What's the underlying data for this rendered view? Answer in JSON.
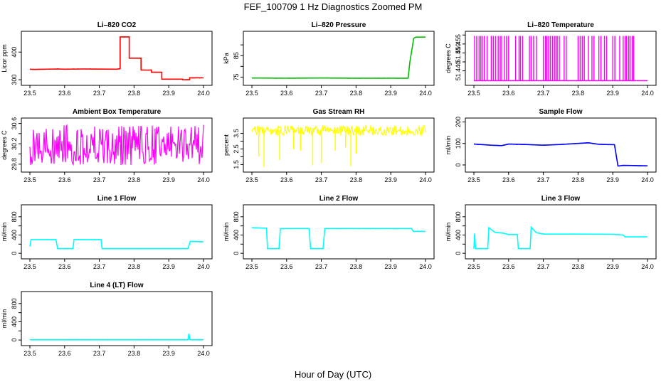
{
  "title": "FEF_100709  1 Hz Diagnostics Zoomed PM",
  "xlabel": "Hour of Day (UTC)",
  "chart_data": [
    {
      "type": "line",
      "title": "Li–820 CO2",
      "ylabel": "Licor ppm",
      "color": "#ff0000",
      "xlim": [
        23.5,
        24.0
      ],
      "ylim": [
        290,
        465
      ],
      "yticks": [
        300,
        400
      ],
      "ytick_labels": [
        "300",
        "400"
      ],
      "xticks": [
        23.5,
        23.6,
        23.7,
        23.8,
        23.9,
        24.0
      ],
      "xtick_labels": [
        "23.5",
        "23.6",
        "23.7",
        "23.8",
        "23.9",
        "24.0"
      ],
      "series": [
        {
          "name": "CO2",
          "x": [
            23.5,
            23.51,
            23.58,
            23.6,
            23.65,
            23.75,
            23.76,
            23.76,
            23.786,
            23.786,
            23.82,
            23.82,
            23.85,
            23.85,
            23.88,
            23.88,
            23.94,
            23.94,
            23.96,
            23.96,
            24.0
          ],
          "y": [
            338,
            337,
            339,
            338,
            339,
            338,
            340,
            455,
            455,
            378,
            378,
            335,
            335,
            327,
            327,
            302,
            302,
            300,
            300,
            307,
            307
          ]
        }
      ]
    },
    {
      "type": "line",
      "title": "Li–820 Pressure",
      "ylabel": "kPa",
      "color": "#00c000",
      "xlim": [
        23.5,
        24.0
      ],
      "ylim": [
        72.5,
        95
      ],
      "yticks": [
        75,
        80,
        85,
        90
      ],
      "ytick_labels": [
        "75",
        "",
        "85",
        ""
      ],
      "xticks": [
        23.5,
        23.6,
        23.7,
        23.8,
        23.9,
        24.0
      ],
      "xtick_labels": [
        "23.5",
        "23.6",
        "23.7",
        "23.8",
        "23.9",
        "24.0"
      ],
      "series": [
        {
          "name": "Pressure",
          "x": [
            23.5,
            23.6,
            23.7,
            23.8,
            23.9,
            23.95,
            23.955,
            23.962,
            23.966,
            23.972,
            24.0
          ],
          "y": [
            74.6,
            74.5,
            74.6,
            74.5,
            74.5,
            74.5,
            82,
            89,
            93,
            93.6,
            93.6
          ]
        }
      ]
    },
    {
      "type": "spikes",
      "title": "Li–820 Temperature",
      "ylabel": "degrees C",
      "color": "#ff00ff",
      "xlim": [
        23.5,
        24.0
      ],
      "ylim": [
        51.4335,
        51.4605
      ],
      "yticks": [
        51.44,
        51.445,
        51.45,
        51.455,
        51.46
      ],
      "ytick_labels": [
        "51.440",
        "",
        "51.450",
        "51.455",
        ""
      ],
      "xticks": [
        23.5,
        23.6,
        23.7,
        23.8,
        23.9,
        24.0
      ],
      "xtick_labels": [
        "23.5",
        "23.6",
        "23.7",
        "23.8",
        "23.9",
        "24.0"
      ],
      "baseline": 51.4345,
      "top": 51.4595,
      "spikes": [
        23.502,
        23.508,
        23.515,
        23.52,
        23.524,
        23.53,
        23.538,
        23.55,
        23.556,
        23.562,
        23.57,
        23.576,
        23.58,
        23.588,
        23.594,
        23.6,
        23.62,
        23.63,
        23.634,
        23.64,
        23.66,
        23.665,
        23.672,
        23.68,
        23.7,
        23.706,
        23.71,
        23.715,
        23.72,
        23.726,
        23.732,
        23.736,
        23.74,
        23.746,
        23.76,
        23.766,
        23.8,
        23.806,
        23.812,
        23.818,
        23.83,
        23.84,
        23.846,
        23.86,
        23.866,
        23.876,
        23.882,
        23.9,
        23.906,
        23.92,
        23.93,
        23.936,
        23.94,
        23.946,
        23.95,
        23.956,
        23.96
      ]
    },
    {
      "type": "noise",
      "title": "Ambient Box Temperature",
      "ylabel": "degrees C",
      "color": "#ff00ff",
      "xlim": [
        23.5,
        24.0
      ],
      "ylim": [
        29.7,
        30.65
      ],
      "yticks": [
        29.8,
        30.0,
        30.2,
        30.4,
        30.6
      ],
      "ytick_labels": [
        "29.8",
        "",
        "30.2",
        "",
        "30.6"
      ],
      "xticks": [
        23.5,
        23.6,
        23.7,
        23.8,
        23.9,
        24.0
      ],
      "xtick_labels": [
        "23.5",
        "23.6",
        "23.7",
        "23.8",
        "23.9",
        "24.0"
      ],
      "x0": 23.5,
      "x1": 24.0,
      "center_start": 30.08,
      "center_end": 30.22,
      "low": 29.78,
      "high": 30.58
    },
    {
      "type": "noise",
      "title": "Gas Stream RH",
      "ylabel": "percent",
      "color": "#ffff00",
      "xlim": [
        23.5,
        24.0
      ],
      "ylim": [
        1.2,
        4.3
      ],
      "yticks": [
        1.5,
        2.0,
        2.5,
        3.0,
        3.5
      ],
      "ytick_labels": [
        "1.5",
        "",
        "2.5",
        "",
        "3.5"
      ],
      "xticks": [
        23.5,
        23.6,
        23.7,
        23.8,
        23.9,
        24.0
      ],
      "xtick_labels": [
        "23.5",
        "23.6",
        "23.7",
        "23.8",
        "23.9",
        "24.0"
      ],
      "x0": 23.5,
      "x1": 24.0,
      "center_start": 3.7,
      "center_end": 3.65,
      "low": 3.35,
      "high": 4.0,
      "dips": [
        [
          23.52,
          2.0
        ],
        [
          23.535,
          1.35
        ],
        [
          23.58,
          1.8
        ],
        [
          23.62,
          2.5
        ],
        [
          23.64,
          2.4
        ],
        [
          23.675,
          1.45
        ],
        [
          23.7,
          1.6
        ],
        [
          23.74,
          2.4
        ],
        [
          23.77,
          2.6
        ],
        [
          23.785,
          1.4
        ],
        [
          23.8,
          2.2
        ]
      ]
    },
    {
      "type": "line",
      "title": "Sample Flow",
      "ylabel": "ml/min",
      "color": "#0000ff",
      "xlim": [
        23.5,
        24.0
      ],
      "ylim": [
        -20,
        205
      ],
      "yticks": [
        0,
        100,
        200
      ],
      "ytick_labels": [
        "0",
        "100",
        "200"
      ],
      "xticks": [
        23.5,
        23.6,
        23.7,
        23.8,
        23.9,
        24.0
      ],
      "xtick_labels": [
        "23.5",
        "23.6",
        "23.7",
        "23.8",
        "23.9",
        "24.0"
      ],
      "series": [
        {
          "name": "Sample Flow",
          "x": [
            23.5,
            23.55,
            23.58,
            23.6,
            23.65,
            23.7,
            23.75,
            23.8,
            23.83,
            23.86,
            23.905,
            23.915,
            23.93,
            24.0
          ],
          "y": [
            97,
            92,
            90,
            97,
            95,
            92,
            95,
            100,
            103,
            96,
            94,
            -5,
            -2,
            -4
          ]
        }
      ]
    },
    {
      "type": "line",
      "title": "Line 1 Flow",
      "ylabel": "ml/min",
      "color": "#00ffff",
      "xlim": [
        23.5,
        24.0
      ],
      "ylim": [
        -60,
        1000
      ],
      "yticks": [
        0,
        200,
        400,
        600,
        800
      ],
      "ytick_labels": [
        "0",
        "",
        "400",
        "",
        "800"
      ],
      "xticks": [
        23.5,
        23.6,
        23.7,
        23.8,
        23.9,
        24.0
      ],
      "xtick_labels": [
        "23.5",
        "23.6",
        "23.7",
        "23.8",
        "23.9",
        "24.0"
      ],
      "series": [
        {
          "name": "Line 1",
          "x": [
            23.5,
            23.503,
            23.575,
            23.58,
            23.624,
            23.627,
            23.705,
            23.708,
            23.955,
            23.962,
            24.0
          ],
          "y": [
            150,
            300,
            300,
            100,
            100,
            300,
            300,
            100,
            100,
            260,
            250
          ]
        }
      ]
    },
    {
      "type": "line",
      "title": "Line 2 Flow",
      "ylabel": "ml/min",
      "color": "#00ffff",
      "xlim": [
        23.5,
        24.0
      ],
      "ylim": [
        -60,
        1000
      ],
      "yticks": [
        0,
        200,
        400,
        600,
        800
      ],
      "ytick_labels": [
        "0",
        "",
        "400",
        "",
        "800"
      ],
      "xticks": [
        23.5,
        23.6,
        23.7,
        23.8,
        23.9,
        24.0
      ],
      "xtick_labels": [
        "23.5",
        "23.6",
        "23.7",
        "23.8",
        "23.9",
        "24.0"
      ],
      "series": [
        {
          "name": "Line 2",
          "x": [
            23.5,
            23.542,
            23.545,
            23.578,
            23.582,
            23.665,
            23.669,
            23.705,
            23.71,
            23.96,
            23.965,
            24.0
          ],
          "y": [
            560,
            550,
            100,
            100,
            540,
            540,
            100,
            100,
            540,
            540,
            480,
            480
          ]
        }
      ]
    },
    {
      "type": "line",
      "title": "Line 3 Flow",
      "ylabel": "ml/min",
      "color": "#00ffff",
      "xlim": [
        23.5,
        24.0
      ],
      "ylim": [
        -60,
        1000
      ],
      "yticks": [
        0,
        200,
        400,
        600,
        800
      ],
      "ytick_labels": [
        "0",
        "",
        "400",
        "",
        "800"
      ],
      "xticks": [
        23.5,
        23.6,
        23.7,
        23.8,
        23.9,
        24.0
      ],
      "xtick_labels": [
        "23.5",
        "23.6",
        "23.7",
        "23.8",
        "23.9",
        "24.0"
      ],
      "series": [
        {
          "name": "Line 3",
          "x": [
            23.5,
            23.502,
            23.505,
            23.54,
            23.543,
            23.56,
            23.585,
            23.6,
            23.625,
            23.628,
            23.662,
            23.665,
            23.68,
            23.7,
            23.8,
            23.9,
            23.93,
            23.935,
            24.0
          ],
          "y": [
            100,
            430,
            100,
            100,
            560,
            460,
            440,
            410,
            410,
            100,
            100,
            570,
            450,
            420,
            420,
            415,
            400,
            360,
            360
          ]
        }
      ]
    },
    {
      "type": "line",
      "title": "Line 4 (LT) Flow",
      "ylabel": "ml/min",
      "color": "#00ffff",
      "xlim": [
        23.5,
        24.0
      ],
      "ylim": [
        -60,
        1000
      ],
      "yticks": [
        0,
        200,
        400,
        600,
        800
      ],
      "ytick_labels": [
        "0",
        "",
        "400",
        "",
        "800"
      ],
      "xticks": [
        23.5,
        23.6,
        23.7,
        23.8,
        23.9,
        24.0
      ],
      "xtick_labels": [
        "23.5",
        "23.6",
        "23.7",
        "23.8",
        "23.9",
        "24.0"
      ],
      "series": [
        {
          "name": "Line 4",
          "x": [
            23.5,
            23.955,
            23.958,
            23.961,
            23.964,
            24.0
          ],
          "y": [
            5,
            5,
            140,
            5,
            5,
            5
          ]
        }
      ]
    }
  ]
}
